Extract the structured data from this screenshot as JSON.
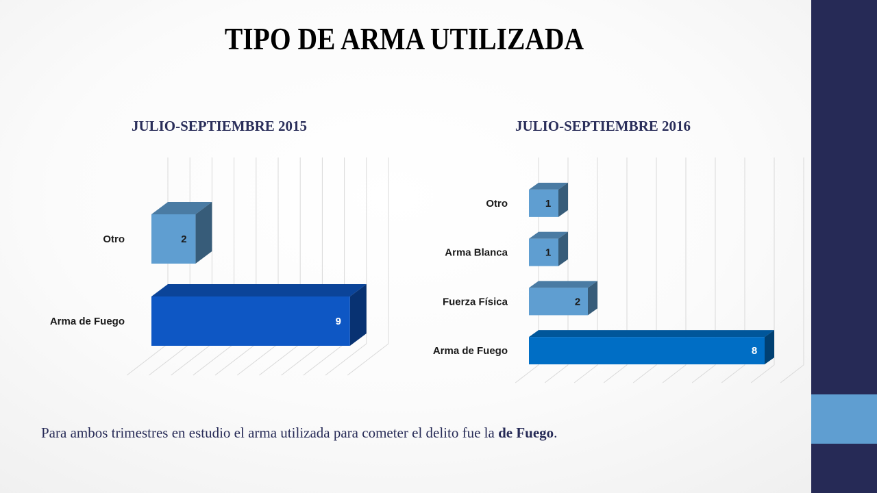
{
  "title": "TIPO DE ARMA UTILIZADA",
  "caption": {
    "text_before": "Para ambos trimestres en estudio el arma utilizada para cometer el delito fue la ",
    "text_bold": "de Fuego",
    "text_after": "."
  },
  "colors": {
    "sidebar": "#262a56",
    "sidebar_accent": "#5f9ed1",
    "bar_light": "#5f9ed1",
    "bar_dark_2015": "#0e57c4",
    "bar_dark_2016": "#006ec5"
  },
  "chart_data": [
    {
      "type": "bar",
      "orientation": "horizontal",
      "style": "3d",
      "title": "JULIO-SEPTIEMBRE 2015",
      "categories": [
        "Otro",
        "Arma de Fuego"
      ],
      "values": [
        2,
        9
      ],
      "xlim": [
        0,
        10
      ],
      "grid": true,
      "legend": "none"
    },
    {
      "type": "bar",
      "orientation": "horizontal",
      "style": "3d",
      "title": "JULIO-SEPTIEMBRE 2016",
      "categories": [
        "Otro",
        "Arma Blanca",
        "Fuerza Física",
        "Arma de Fuego"
      ],
      "values": [
        1,
        1,
        2,
        8
      ],
      "xlim": [
        0,
        9
      ],
      "grid": true,
      "legend": "none"
    }
  ]
}
